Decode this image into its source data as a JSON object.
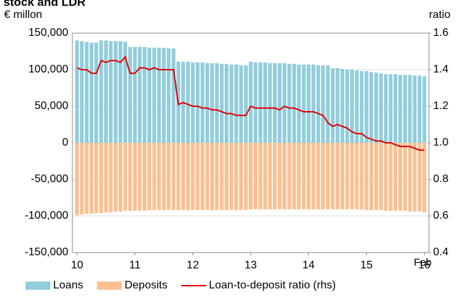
{
  "chart_data": {
    "type": "bar-line",
    "title": "stock and LDR",
    "y_label": "€ millon",
    "y2_label": "ratio",
    "annotation": "Feb",
    "x": [
      10,
      10.083,
      10.167,
      10.25,
      10.333,
      10.417,
      10.5,
      10.583,
      10.667,
      10.75,
      10.833,
      10.917,
      11,
      11.083,
      11.167,
      11.25,
      11.333,
      11.417,
      11.5,
      11.583,
      11.667,
      11.75,
      11.833,
      11.917,
      12,
      12.083,
      12.167,
      12.25,
      12.333,
      12.417,
      12.5,
      12.583,
      12.667,
      12.75,
      12.833,
      12.917,
      13,
      13.083,
      13.167,
      13.25,
      13.333,
      13.417,
      13.5,
      13.583,
      13.667,
      13.75,
      13.833,
      13.917,
      14,
      14.083,
      14.167,
      14.25,
      14.333,
      14.417,
      14.5,
      14.583,
      14.667,
      14.75,
      14.833,
      14.917,
      15,
      15.083,
      15.167,
      15.25,
      15.333,
      15.417,
      15.5,
      15.583,
      15.667,
      15.75,
      15.833,
      15.917,
      16
    ],
    "series": [
      {
        "name": "Loans",
        "color": "#92cddc",
        "values": [
          140000,
          139000,
          138000,
          137000,
          137000,
          140000,
          140000,
          139000,
          139000,
          139000,
          138000,
          131000,
          131000,
          131000,
          131000,
          130000,
          130000,
          130000,
          130000,
          129000,
          129000,
          111000,
          111000,
          111000,
          110000,
          110000,
          110000,
          109000,
          109000,
          109000,
          108000,
          108000,
          107000,
          107000,
          106000,
          106000,
          111000,
          110000,
          110000,
          110000,
          109000,
          109000,
          109000,
          109000,
          108000,
          108000,
          107000,
          107000,
          107000,
          107000,
          106000,
          106000,
          106000,
          102000,
          102000,
          101000,
          100000,
          100000,
          99000,
          98000,
          98000,
          97000,
          96000,
          95000,
          94000,
          94000,
          94000,
          93000,
          93000,
          93000,
          92000,
          92000,
          91000
        ]
      },
      {
        "name": "Deposits",
        "color": "#fac090",
        "values": [
          -99000,
          -98000,
          -97000,
          -97000,
          -96000,
          -96000,
          -95000,
          -95000,
          -94000,
          -94000,
          -93000,
          -93000,
          -93000,
          -93000,
          -93000,
          -92000,
          -92000,
          -92000,
          -92000,
          -92000,
          -92000,
          -92000,
          -92000,
          -92000,
          -92000,
          -92000,
          -92000,
          -92000,
          -92000,
          -92000,
          -92000,
          -92000,
          -92000,
          -92000,
          -92000,
          -92000,
          -91000,
          -91000,
          -91000,
          -91000,
          -91000,
          -91000,
          -91000,
          -91000,
          -91000,
          -91000,
          -91000,
          -91000,
          -91000,
          -91000,
          -91000,
          -91000,
          -91000,
          -91000,
          -91000,
          -91000,
          -91000,
          -91000,
          -91000,
          -91000,
          -92000,
          -92000,
          -92000,
          -92000,
          -93000,
          -93000,
          -93000,
          -93000,
          -93000,
          -94000,
          -94000,
          -94000,
          -95000
        ]
      },
      {
        "name": "Loan-to-deposit ratio (rhs)",
        "color": "#e00000",
        "axis": "y2",
        "values": [
          1.41,
          1.4,
          1.4,
          1.38,
          1.38,
          1.45,
          1.44,
          1.45,
          1.45,
          1.44,
          1.47,
          1.38,
          1.38,
          1.41,
          1.41,
          1.4,
          1.41,
          1.4,
          1.4,
          1.4,
          1.4,
          1.21,
          1.22,
          1.21,
          1.2,
          1.2,
          1.19,
          1.19,
          1.18,
          1.18,
          1.17,
          1.16,
          1.16,
          1.15,
          1.15,
          1.15,
          1.2,
          1.19,
          1.19,
          1.19,
          1.19,
          1.19,
          1.18,
          1.2,
          1.19,
          1.19,
          1.18,
          1.17,
          1.17,
          1.17,
          1.16,
          1.15,
          1.11,
          1.09,
          1.1,
          1.09,
          1.08,
          1.06,
          1.05,
          1.05,
          1.03,
          1.02,
          1.01,
          1.01,
          1.0,
          1.0,
          0.99,
          0.98,
          0.98,
          0.98,
          0.97,
          0.96,
          0.96
        ]
      }
    ],
    "xlim": [
      9.92,
      16.08
    ],
    "xticks": [
      10,
      11,
      12,
      13,
      14,
      15,
      16
    ],
    "ylim": [
      -150000,
      150000
    ],
    "yticks": [
      {
        "value": -150000,
        "label": "-150,000"
      },
      {
        "value": -100000,
        "label": "-100,000"
      },
      {
        "value": -50000,
        "label": "-50,000"
      },
      0,
      {
        "value": 50000,
        "label": "50,000"
      },
      {
        "value": 100000,
        "label": "100,000"
      },
      {
        "value": 150000,
        "label": "150,000"
      }
    ],
    "y2lim": [
      0.4,
      1.6
    ],
    "y2ticks": [
      0.4,
      0.6,
      0.8,
      {
        "value": 1,
        "label": "1.0"
      },
      1.2,
      1.4,
      1.6
    ],
    "grid": true,
    "legend": "bottom"
  }
}
